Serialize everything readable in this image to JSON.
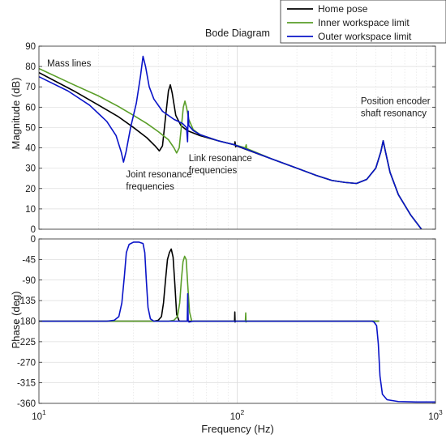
{
  "chart_data": {
    "type": "line",
    "title": "Bode Diagram",
    "xlabel": "Frequency  (Hz)",
    "xscale": "log",
    "xlim": [
      10,
      1000
    ],
    "x_ticks": [
      10,
      100,
      1000
    ],
    "x_tick_labels": [
      {
        "base": "10",
        "exp": "1"
      },
      {
        "base": "10",
        "exp": "2"
      },
      {
        "base": "10",
        "exp": "3"
      }
    ],
    "grid": true,
    "legend": {
      "placement": "top-right",
      "entries": [
        {
          "label": "Home pose",
          "color": "#000000"
        },
        {
          "label": "Inner workspace limit",
          "color": "#5a9e28"
        },
        {
          "label": "Outer workspace limit",
          "color": "#0a14c8"
        }
      ]
    },
    "panels": [
      {
        "id": "magnitude",
        "ylabel": "Magnitude (dB)",
        "ylim": [
          0,
          90
        ],
        "y_ticks": [
          0,
          10,
          20,
          30,
          40,
          50,
          60,
          70,
          80,
          90
        ],
        "annotations": [
          {
            "lines": [
              "Mass lines"
            ],
            "x": 11.0,
            "y": 80
          },
          {
            "lines": [
              "Joint resonance",
              "frequencies"
            ],
            "x": 27.5,
            "y": 25.5
          },
          {
            "lines": [
              "Link resonance",
              "frequencies"
            ],
            "x": 57,
            "y": 33.5
          },
          {
            "lines": [
              "Position encoder",
              "shaft resonancy"
            ],
            "x": 420,
            "y": 61.5
          }
        ],
        "series": [
          {
            "name": "Home pose",
            "color": "#000000",
            "points": [
              [
                10,
                77
              ],
              [
                15,
                68
              ],
              [
                20,
                61
              ],
              [
                25,
                55.5
              ],
              [
                30,
                50
              ],
              [
                35,
                45
              ],
              [
                38.5,
                41
              ],
              [
                40.5,
                38.5
              ],
              [
                42,
                41
              ],
              [
                43.5,
                55
              ],
              [
                45,
                68
              ],
              [
                46,
                71
              ],
              [
                47,
                67
              ],
              [
                49,
                56
              ],
              [
                52,
                51
              ],
              [
                56,
                48.5
              ],
              [
                65,
                46
              ],
              [
                80,
                43.5
              ],
              [
                97,
                41.5
              ],
              [
                97.5,
                43
              ],
              [
                98.2,
                40.5
              ],
              [
                99,
                41
              ],
              [
                120,
                38
              ],
              [
                150,
                34.5
              ],
              [
                200,
                30
              ],
              [
                250,
                26.5
              ],
              [
                300,
                24
              ],
              [
                350,
                23
              ],
              [
                400,
                22.5
              ],
              [
                450,
                24.5
              ],
              [
                500,
                30
              ],
              [
                530,
                38
              ],
              [
                545,
                43.5
              ],
              [
                560,
                38
              ],
              [
                590,
                28
              ],
              [
                650,
                17
              ],
              [
                750,
                7
              ],
              [
                850,
                0
              ]
            ]
          },
          {
            "name": "Inner workspace limit",
            "color": "#5a9e28",
            "points": [
              [
                10,
                79
              ],
              [
                15,
                71
              ],
              [
                20,
                65.5
              ],
              [
                25,
                60.5
              ],
              [
                30,
                56
              ],
              [
                35,
                52
              ],
              [
                40,
                48
              ],
              [
                45,
                44
              ],
              [
                48,
                40
              ],
              [
                49.5,
                37.5
              ],
              [
                51,
                40
              ],
              [
                52.5,
                52
              ],
              [
                53.5,
                60
              ],
              [
                54.5,
                63
              ],
              [
                55.5,
                60
              ],
              [
                57,
                54
              ],
              [
                60,
                49
              ],
              [
                65,
                46.5
              ],
              [
                80,
                43.5
              ],
              [
                97,
                41.5
              ],
              [
                110,
                40
              ],
              [
                111,
                41.5
              ],
              [
                112,
                39
              ],
              [
                113,
                39.5
              ],
              [
                150,
                34.5
              ],
              [
                200,
                30
              ],
              [
                250,
                26.5
              ],
              [
                300,
                24
              ],
              [
                350,
                23
              ],
              [
                400,
                22.5
              ],
              [
                450,
                24.5
              ],
              [
                500,
                30
              ],
              [
                530,
                38
              ],
              [
                545,
                43.5
              ],
              [
                560,
                38
              ],
              [
                590,
                28
              ],
              [
                650,
                17
              ],
              [
                750,
                7
              ],
              [
                850,
                0
              ]
            ]
          },
          {
            "name": "Outer workspace limit",
            "color": "#0a14c8",
            "points": [
              [
                10,
                75
              ],
              [
                14,
                68
              ],
              [
                18,
                61
              ],
              [
                22,
                53
              ],
              [
                24.5,
                46
              ],
              [
                26,
                38
              ],
              [
                26.7,
                33
              ],
              [
                27.5,
                38
              ],
              [
                29,
                50
              ],
              [
                31,
                62
              ],
              [
                32.5,
                75
              ],
              [
                33.5,
                85
              ],
              [
                34.5,
                80
              ],
              [
                36,
                70
              ],
              [
                38,
                64
              ],
              [
                42,
                58
              ],
              [
                48,
                54
              ],
              [
                53,
                52
              ],
              [
                55.5,
                50
              ],
              [
                56.2,
                43
              ],
              [
                56.6,
                58
              ],
              [
                57,
                51
              ],
              [
                60,
                48.5
              ],
              [
                65,
                46.5
              ],
              [
                80,
                43.5
              ],
              [
                97,
                41.5
              ],
              [
                150,
                34.5
              ],
              [
                200,
                30
              ],
              [
                250,
                26.5
              ],
              [
                300,
                24
              ],
              [
                350,
                23
              ],
              [
                400,
                22.5
              ],
              [
                450,
                24.5
              ],
              [
                500,
                30
              ],
              [
                530,
                38
              ],
              [
                545,
                43.5
              ],
              [
                560,
                38
              ],
              [
                590,
                28
              ],
              [
                650,
                17
              ],
              [
                750,
                7
              ],
              [
                850,
                0
              ]
            ]
          }
        ]
      },
      {
        "id": "phase",
        "ylabel": "Phase (deg)",
        "ylim": [
          -360,
          0
        ],
        "y_ticks": [
          0,
          -45,
          -90,
          -135,
          -180,
          -225,
          -270,
          -315,
          -360
        ],
        "series": [
          {
            "name": "Home pose",
            "color": "#000000",
            "points": [
              [
                10,
                -180
              ],
              [
                38,
                -180
              ],
              [
                40,
                -178
              ],
              [
                41.5,
                -170
              ],
              [
                42.5,
                -140
              ],
              [
                43.5,
                -90
              ],
              [
                44.5,
                -45
              ],
              [
                45.5,
                -30
              ],
              [
                46.5,
                -22
              ],
              [
                47.5,
                -40
              ],
              [
                48.5,
                -100
              ],
              [
                49.5,
                -165
              ],
              [
                51,
                -180
              ],
              [
                97,
                -180
              ],
              [
                97.3,
                -160
              ],
              [
                97.6,
                -182
              ],
              [
                98,
                -180
              ],
              [
                520,
                -180
              ]
            ]
          },
          {
            "name": "Inner workspace limit",
            "color": "#5a9e28",
            "points": [
              [
                10,
                -180
              ],
              [
                45,
                -180
              ],
              [
                48,
                -178
              ],
              [
                50,
                -170
              ],
              [
                51.3,
                -140
              ],
              [
                52.3,
                -90
              ],
              [
                53.3,
                -50
              ],
              [
                54.3,
                -38
              ],
              [
                55.3,
                -45
              ],
              [
                56.3,
                -100
              ],
              [
                57.5,
                -160
              ],
              [
                59,
                -180
              ],
              [
                110,
                -180
              ],
              [
                110.4,
                -162
              ],
              [
                110.8,
                -182
              ],
              [
                111.5,
                -180
              ],
              [
                520,
                -180
              ]
            ]
          },
          {
            "name": "Outer workspace limit",
            "color": "#0a14c8",
            "points": [
              [
                10,
                -180
              ],
              [
                22,
                -180
              ],
              [
                24,
                -178
              ],
              [
                25.3,
                -170
              ],
              [
                26.2,
                -140
              ],
              [
                27,
                -80
              ],
              [
                27.6,
                -30
              ],
              [
                28.5,
                -12
              ],
              [
                30,
                -7
              ],
              [
                32,
                -7
              ],
              [
                33.5,
                -10
              ],
              [
                34.2,
                -30
              ],
              [
                34.8,
                -90
              ],
              [
                35.5,
                -150
              ],
              [
                36.5,
                -175
              ],
              [
                38,
                -180
              ],
              [
                56,
                -180
              ],
              [
                56.3,
                -120
              ],
              [
                56.6,
                -180
              ],
              [
                57.2,
                -182
              ],
              [
                60,
                -180
              ],
              [
                480,
                -180
              ],
              [
                490,
                -182
              ],
              [
                505,
                -190
              ],
              [
                515,
                -230
              ],
              [
                525,
                -300
              ],
              [
                540,
                -340
              ],
              [
                570,
                -352
              ],
              [
                650,
                -356
              ],
              [
                800,
                -357
              ],
              [
                1000,
                -357
              ]
            ]
          }
        ]
      }
    ]
  }
}
